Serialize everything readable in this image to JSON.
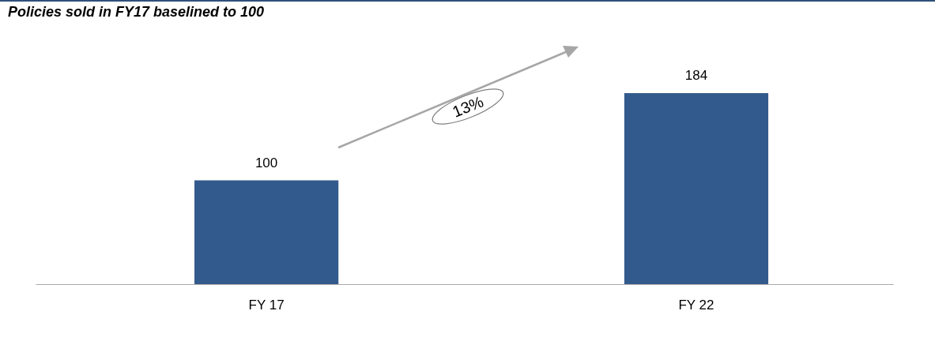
{
  "chart_data": {
    "type": "bar",
    "title": "Policies sold in FY17 baselined to 100",
    "categories": [
      "FY 17",
      "FY 22"
    ],
    "values": [
      100,
      184
    ],
    "color": "#335a8c",
    "data_labels": true,
    "annotations": [
      "13%"
    ]
  }
}
